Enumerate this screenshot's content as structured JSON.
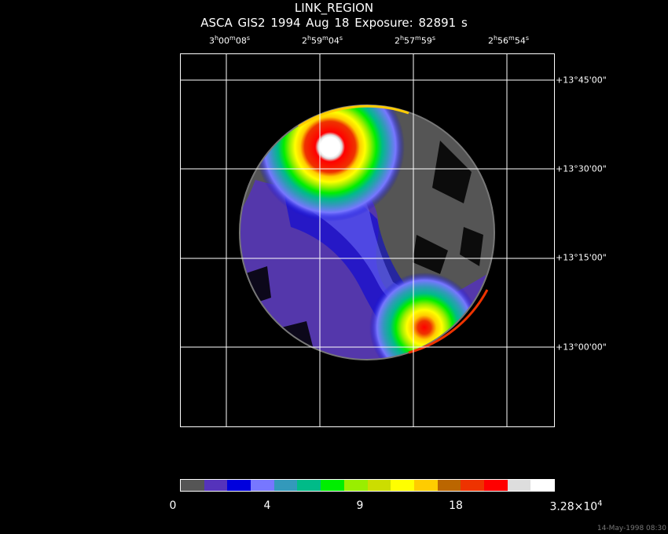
{
  "header": {
    "title": "LINK_REGION",
    "subtitle": "ASCA GIS2   1994 Aug 18    Exposure: 82891 s"
  },
  "ra_labels": [
    {
      "h": "3",
      "m": "00",
      "s": "08"
    },
    {
      "h": "2",
      "m": "59",
      "s": "04"
    },
    {
      "h": "2",
      "m": "57",
      "s": "59"
    },
    {
      "h": "2",
      "m": "56",
      "s": "54"
    }
  ],
  "dec_labels": [
    "+13°45'00\"",
    "+13°30'00\"",
    "+13°15'00\"",
    "+13°00'00\""
  ],
  "colorbar": {
    "colors": [
      "#555555",
      "#5533bb",
      "#0000dd",
      "#7777ff",
      "#3399bb",
      "#00bb88",
      "#00ee00",
      "#99ee00",
      "#ccdd00",
      "#ffff00",
      "#ffcc00",
      "#bb6600",
      "#ee3300",
      "#ff0000",
      "#dddddd",
      "#ffffff"
    ],
    "labels": [
      "0",
      "4",
      "9",
      "18"
    ],
    "max_label_base": "3.28×10",
    "max_label_exp": "4"
  },
  "footer": {
    "timestamp": "14-May-1998 08:30"
  }
}
